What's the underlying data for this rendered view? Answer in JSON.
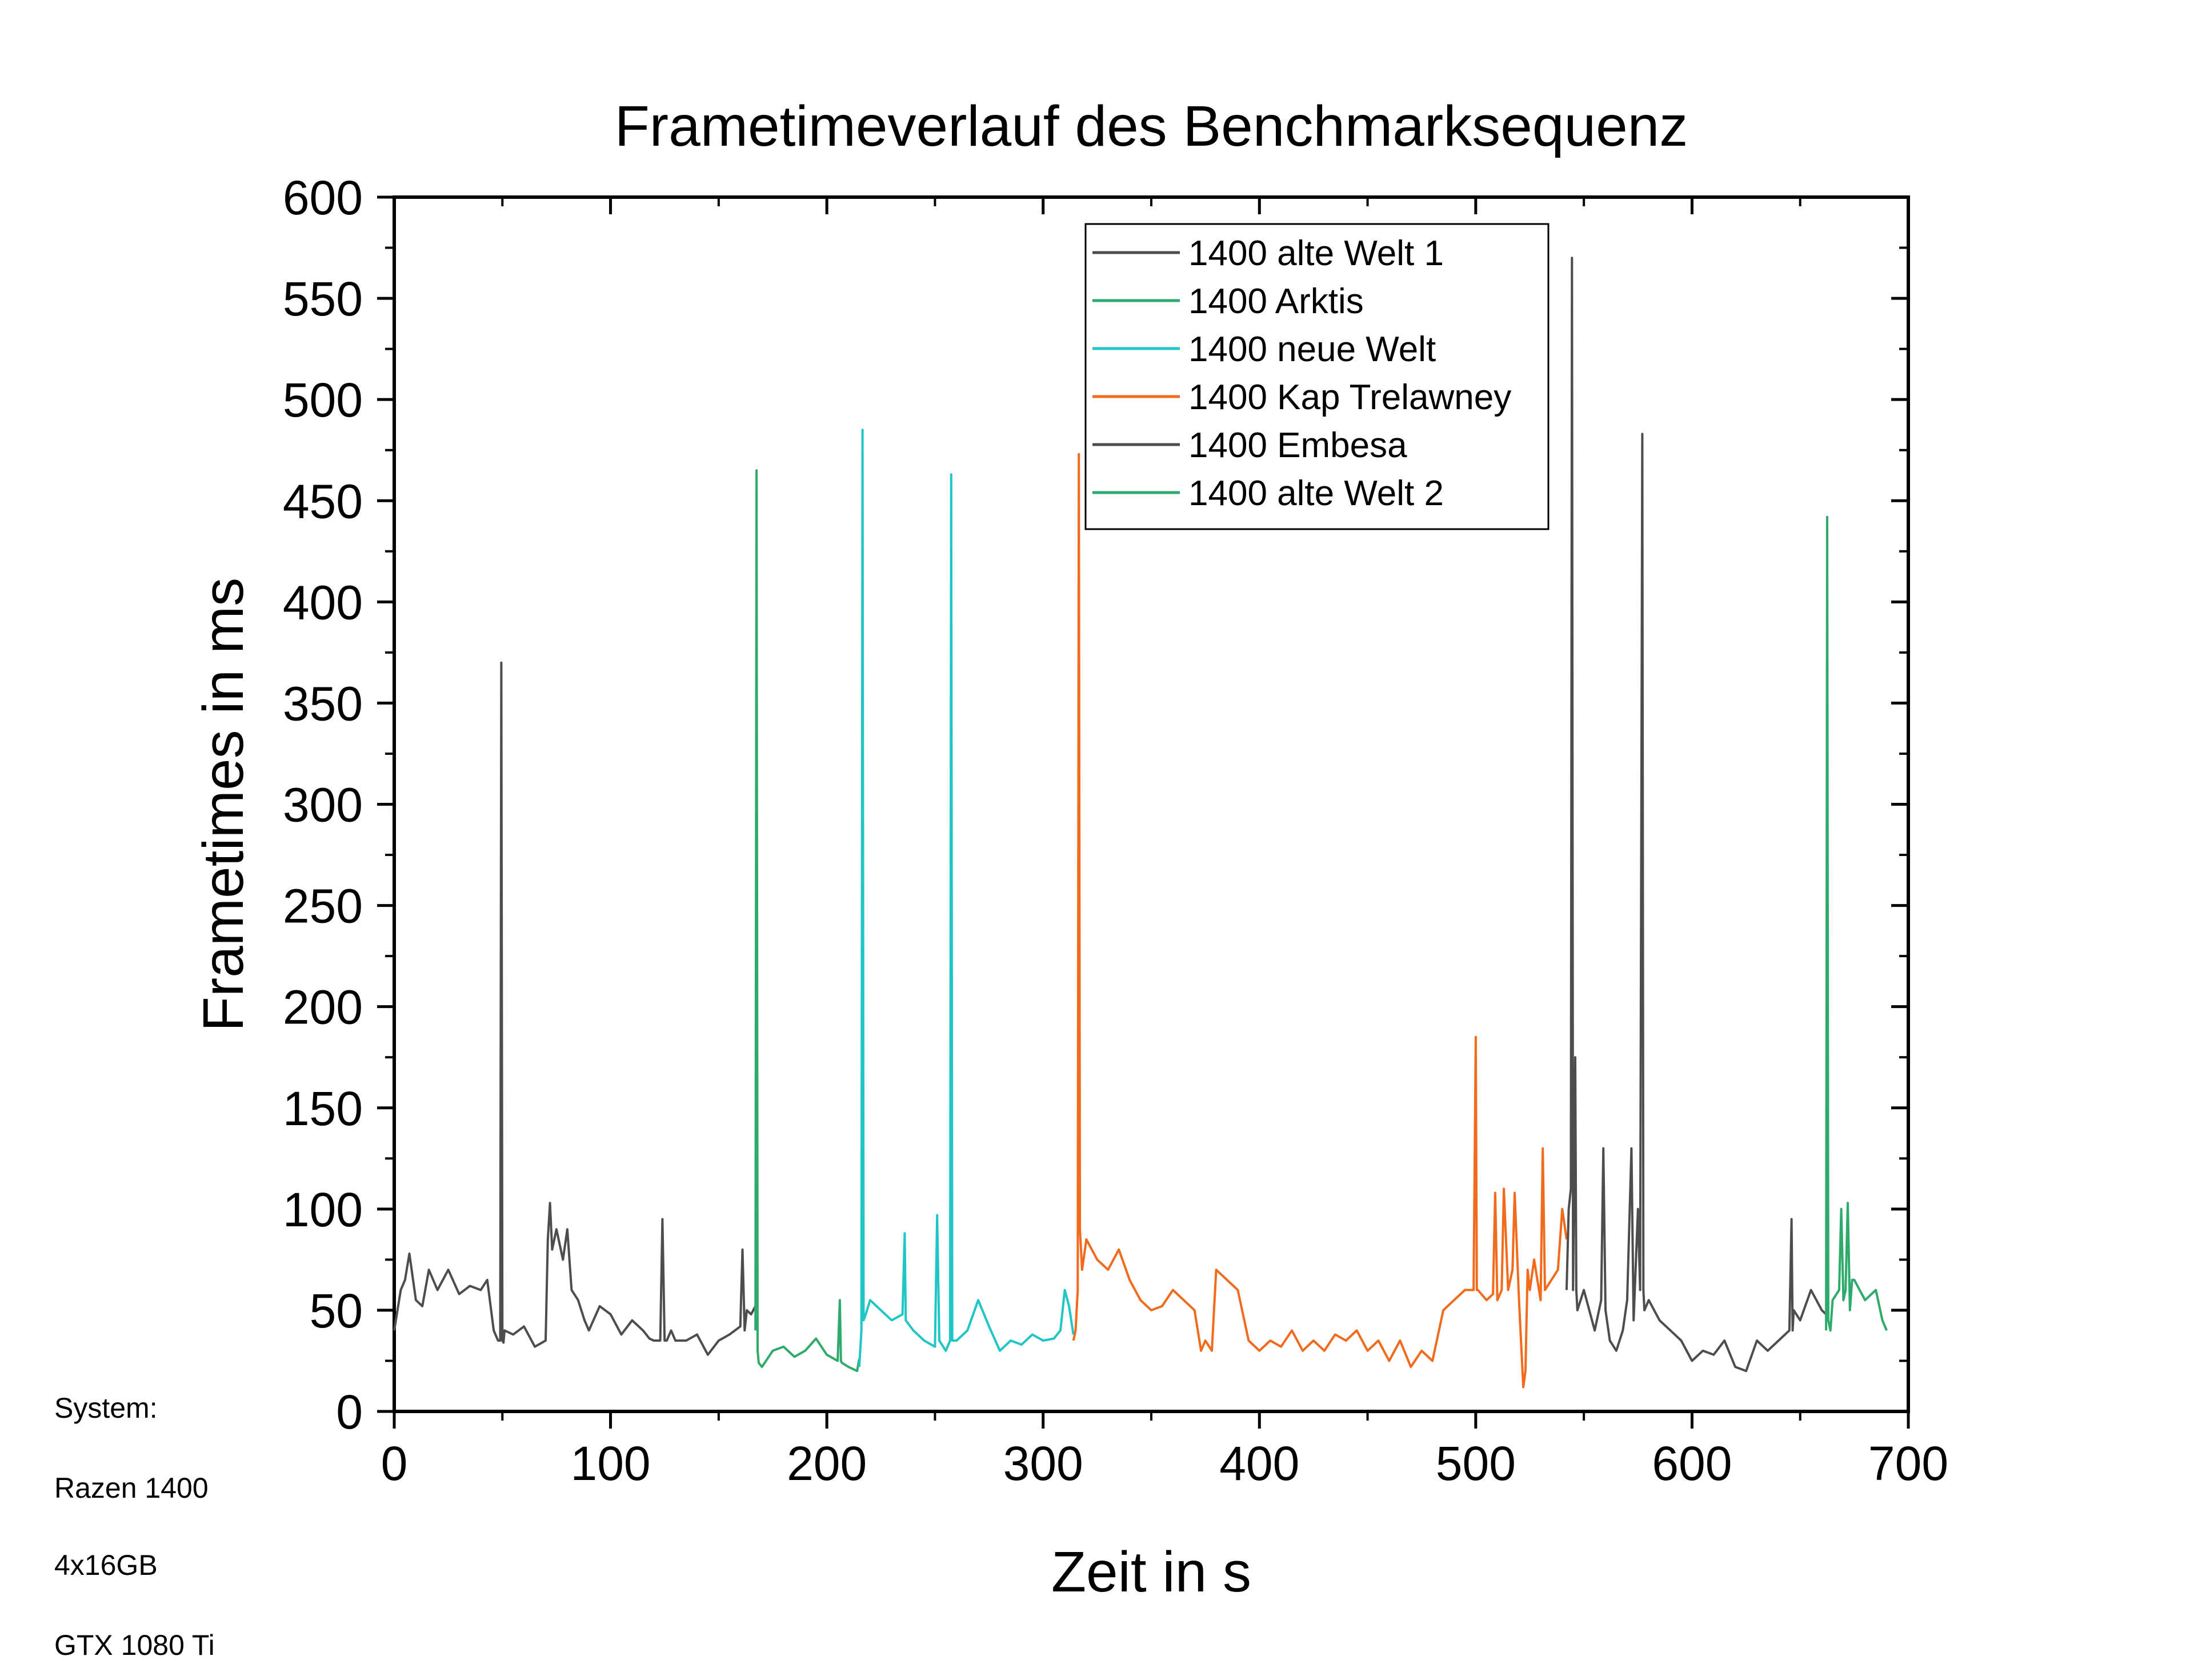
{
  "system": {
    "label": "System:",
    "cpu": "Razen 1400",
    "ram": "4x16GB",
    "gpu": "GTX 1080 Ti"
  },
  "chart_data": {
    "type": "line",
    "title": "Frametimeverlauf des Benchmarksequenz",
    "xlabel": "Zeit in s",
    "ylabel": "Frametimes in ms",
    "xlim": [
      0,
      700
    ],
    "ylim": [
      0,
      600
    ],
    "xticks": [
      0,
      100,
      200,
      300,
      400,
      500,
      600,
      700
    ],
    "yticks": [
      0,
      50,
      100,
      150,
      200,
      250,
      300,
      350,
      400,
      450,
      500,
      550,
      600
    ],
    "grid": false,
    "legend_position": "top-right",
    "series": [
      {
        "name": "1400 alte Welt 1",
        "color": "#4d4d4d",
        "x": [
          0,
          3,
          5,
          7,
          10,
          13,
          16,
          20,
          25,
          30,
          35,
          40,
          43,
          46,
          48,
          49,
          49.5,
          50,
          50.5,
          51,
          55,
          60,
          65,
          70,
          71,
          72,
          73,
          75,
          78,
          80,
          82,
          85,
          88,
          90,
          95,
          100,
          105,
          110,
          115,
          118,
          120,
          123,
          124,
          125,
          126,
          128,
          130,
          135,
          140,
          145,
          150,
          155,
          160,
          161,
          162,
          163,
          165,
          167
        ],
        "y": [
          40,
          60,
          65,
          78,
          55,
          52,
          70,
          60,
          70,
          58,
          62,
          60,
          65,
          40,
          35,
          35,
          370,
          35,
          34,
          40,
          38,
          42,
          32,
          35,
          85,
          103,
          80,
          90,
          75,
          90,
          60,
          55,
          45,
          40,
          52,
          48,
          38,
          45,
          40,
          36,
          35,
          35,
          95,
          35,
          35,
          40,
          35,
          35,
          38,
          28,
          35,
          38,
          42,
          80,
          40,
          50,
          48,
          52
        ]
      },
      {
        "name": "1400 Arktis",
        "color": "#2eaa6a",
        "x": [
          167,
          167.5,
          168,
          168.5,
          170,
          175,
          180,
          185,
          190,
          195,
          200,
          205,
          206,
          206.5,
          207,
          210,
          214,
          215
        ],
        "y": [
          40,
          465,
          30,
          24,
          22,
          30,
          32,
          27,
          30,
          36,
          28,
          25,
          55,
          25,
          24,
          22,
          20,
          26
        ]
      },
      {
        "name": "1400 neue Welt",
        "color": "#20c5c5",
        "x": [
          215,
          216,
          216.5,
          217,
          218,
          220,
          225,
          230,
          235,
          236,
          236.5,
          240,
          245,
          250,
          251,
          252,
          255,
          257,
          257.5,
          258,
          260,
          265,
          270,
          275,
          280,
          285,
          290,
          295,
          300,
          305,
          308,
          310,
          312,
          314
        ],
        "y": [
          22,
          40,
          485,
          45,
          48,
          55,
          50,
          45,
          48,
          88,
          45,
          40,
          35,
          32,
          97,
          35,
          30,
          35,
          463,
          35,
          35,
          40,
          55,
          42,
          30,
          35,
          33,
          38,
          35,
          36,
          40,
          60,
          52,
          38
        ]
      },
      {
        "name": "1400 Kap Trelawney",
        "color": "#f26b1d",
        "x": [
          314,
          315,
          316,
          316.5,
          317,
          318,
          320,
          325,
          330,
          335,
          340,
          345,
          350,
          355,
          360,
          365,
          370,
          373,
          375,
          378,
          380,
          385,
          390,
          395,
          400,
          405,
          410,
          415,
          420,
          425,
          430,
          435,
          440,
          445,
          450,
          455,
          460,
          465,
          470,
          475,
          480,
          485,
          490,
          495,
          499,
          500,
          500.5,
          501,
          505,
          508,
          509,
          510,
          512,
          513,
          515,
          517,
          518,
          520,
          522,
          523,
          524,
          525,
          527,
          530,
          531,
          532,
          535,
          538,
          540,
          542
        ],
        "y": [
          35,
          40,
          60,
          473,
          90,
          70,
          85,
          75,
          70,
          80,
          65,
          55,
          50,
          52,
          60,
          55,
          50,
          30,
          35,
          30,
          70,
          65,
          60,
          35,
          30,
          35,
          32,
          40,
          30,
          35,
          30,
          38,
          35,
          40,
          30,
          35,
          25,
          35,
          22,
          30,
          25,
          50,
          55,
          60,
          60,
          185,
          60,
          60,
          55,
          58,
          108,
          55,
          60,
          110,
          60,
          70,
          108,
          55,
          12,
          20,
          70,
          60,
          75,
          55,
          130,
          60,
          65,
          70,
          100,
          85
        ]
      },
      {
        "name": "1400 Embesa",
        "color": "#4d4d4d",
        "x": [
          542,
          543,
          544,
          544.5,
          545,
          546,
          546.5,
          547,
          550,
          555,
          558,
          559,
          560,
          562,
          565,
          568,
          570,
          572,
          573,
          575,
          576,
          577,
          577.5,
          578,
          580,
          585,
          590,
          595,
          600,
          605,
          610,
          615,
          620,
          625,
          630,
          635,
          640,
          645,
          646,
          646.5,
          647,
          650,
          655,
          660,
          662
        ],
        "y": [
          60,
          100,
          110,
          570,
          60,
          175,
          60,
          50,
          60,
          40,
          55,
          130,
          50,
          35,
          30,
          40,
          55,
          130,
          45,
          100,
          60,
          483,
          60,
          50,
          55,
          45,
          40,
          35,
          25,
          30,
          28,
          35,
          22,
          20,
          35,
          30,
          35,
          40,
          95,
          40,
          50,
          45,
          60,
          50,
          48
        ]
      },
      {
        "name": "1400 alte Welt 2",
        "color": "#2eaa6a",
        "x": [
          662,
          662.5,
          663,
          664,
          665,
          668,
          669,
          670,
          671,
          672,
          673,
          674,
          675,
          680,
          685,
          688,
          690
        ],
        "y": [
          40,
          442,
          45,
          40,
          55,
          60,
          100,
          55,
          60,
          103,
          50,
          65,
          65,
          55,
          60,
          45,
          40
        ]
      }
    ]
  }
}
